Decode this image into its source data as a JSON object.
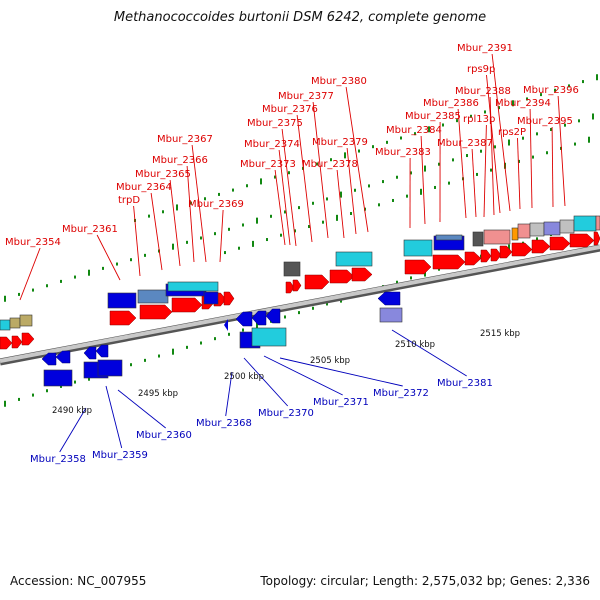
{
  "title": "Methanococcoides burtonii DSM 6242, complete genome",
  "footer": {
    "accession": "Accession: NC_007955",
    "stats": "Topology: circular; Length: 2,575,032 bp; Genes: 2,336"
  },
  "colors": {
    "forward_label": "#dd0000",
    "reverse_label": "#0000bb",
    "backbone": "#888888",
    "cds_forward": "#ff0000",
    "cds_reverse": "#0000dd",
    "cog_cyan": "#22ccdd",
    "cog_steelblue": "#5b88c0",
    "cog_darkgrey": "#555555",
    "cog_pink": "#f09090",
    "cog_lightgrey": "#c0c0c0",
    "cog_orange": "#ff9900",
    "cog_lilac": "#8888dd",
    "cog_olive": "#bbaa66",
    "tick_green": "#118811"
  },
  "ruler": {
    "unit": "bp",
    "tick_labels": [
      "2490 kbp",
      "2495 kbp",
      "2500 kbp",
      "2505 kbp",
      "2510 kbp",
      "2515 kbp"
    ]
  },
  "forward_gene_labels": [
    "Mbur_2354",
    "Mbur_2361",
    "trpD",
    "Mbur_2364",
    "Mbur_2365",
    "Mbur_2366",
    "Mbur_2367",
    "Mbur_2369",
    "Mbur_2373",
    "Mbur_2374",
    "Mbur_2375",
    "Mbur_2376",
    "Mbur_2377",
    "Mbur_2378",
    "Mbur_2379",
    "Mbur_2380",
    "Mbur_2383",
    "Mbur_2384",
    "Mbur_2385",
    "Mbur_2386",
    "Mbur_2387",
    "rpl13p",
    "Mbur_2388",
    "rps9p",
    "Mbur_2391",
    "rps2P",
    "Mbur_2394",
    "Mbur_2395",
    "Mbur_2396"
  ],
  "reverse_gene_labels": [
    "Mbur_2358",
    "Mbur_2359",
    "Mbur_2360",
    "Mbur_2368",
    "Mbur_2370",
    "Mbur_2371",
    "Mbur_2372",
    "Mbur_2381"
  ]
}
